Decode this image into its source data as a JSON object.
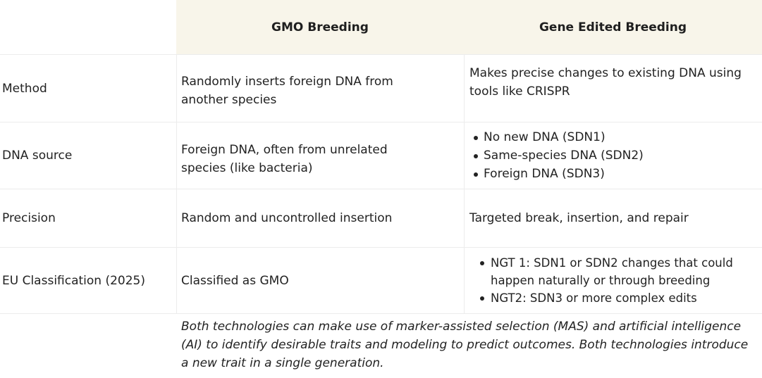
{
  "table": {
    "headers": {
      "gmo": "GMO Breeding",
      "gene_edited": "Gene Edited Breeding"
    },
    "rows": [
      {
        "label": "Method",
        "gmo": "Randomly inserts foreign DNA from another species",
        "gene_edited": "Makes precise changes to existing DNA using tools like CRISPR"
      },
      {
        "label": "DNA source",
        "gmo": "Foreign DNA, often from unrelated species (like bacteria)",
        "gene_edited_items": [
          "No new DNA (SDN1)",
          "Same-species DNA (SDN2)",
          "Foreign DNA (SDN3)"
        ]
      },
      {
        "label": "Precision",
        "gmo": "Random and uncontrolled insertion",
        "gene_edited": "Targeted break, insertion, and repair"
      },
      {
        "label": "EU Classification (2025)",
        "gmo": "Classified as GMO",
        "gene_edited_items": [
          "NGT 1: SDN1 or SDN2 changes that could happen naturally or through breeding",
          "NGT2: SDN3 or more complex edits"
        ]
      }
    ],
    "footnote": "Both technologies can make use of marker-assisted selection (MAS) and artificial intelligence (AI) to identify desirable traits and modeling to predict outcomes. Both technologies introduce a new trait in a single generation."
  }
}
